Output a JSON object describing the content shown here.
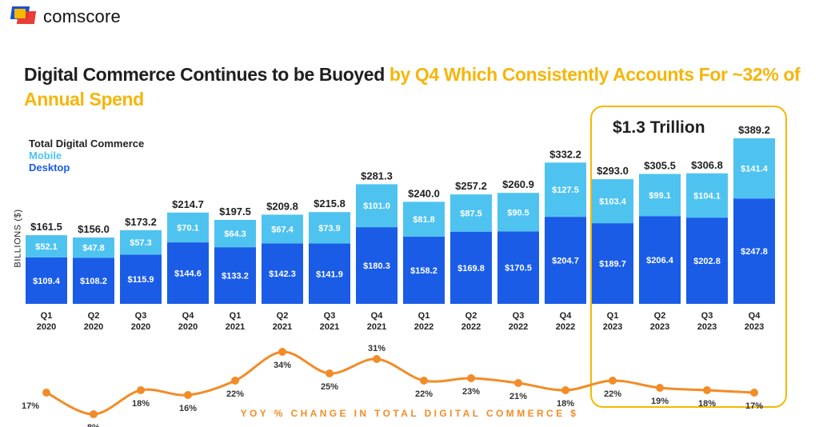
{
  "logo": {
    "text": "comscore"
  },
  "headline": {
    "part1": "Digital Commerce Continues to be Buoyed ",
    "part2": "by Q4 Which Consistently Accounts For ~32% of Annual Spend"
  },
  "legend": {
    "total": "Total Digital Commerce",
    "mobile": "Mobile",
    "desktop": "Desktop"
  },
  "highlight_label": "$1.3 Trillion",
  "caption": "YOY % CHANGE IN TOTAL DIGITAL COMMERCE $",
  "colors": {
    "desktop": "#1a5ce6",
    "mobile": "#4fc3f0",
    "line": "#f28c28",
    "highlight": "#f5b800"
  },
  "chart_data": [
    {
      "type": "bar",
      "stacked": true,
      "ylabel": "BILLIONS ($)",
      "categories": [
        "Q1 2020",
        "Q2 2020",
        "Q3 2020",
        "Q4 2020",
        "Q1 2021",
        "Q2 2021",
        "Q3 2021",
        "Q4 2021",
        "Q1 2022",
        "Q2 2022",
        "Q3 2022",
        "Q4 2022",
        "Q1 2023",
        "Q2 2023",
        "Q3 2023",
        "Q4 2023"
      ],
      "category_lines": [
        [
          "Q1",
          "2020"
        ],
        [
          "Q2",
          "2020"
        ],
        [
          "Q3",
          "2020"
        ],
        [
          "Q4",
          "2020"
        ],
        [
          "Q1",
          "2021"
        ],
        [
          "Q2",
          "2021"
        ],
        [
          "Q3",
          "2021"
        ],
        [
          "Q4",
          "2021"
        ],
        [
          "Q1",
          "2022"
        ],
        [
          "Q2",
          "2022"
        ],
        [
          "Q3",
          "2022"
        ],
        [
          "Q4",
          "2022"
        ],
        [
          "Q1",
          "2023"
        ],
        [
          "Q2",
          "2023"
        ],
        [
          "Q3",
          "2023"
        ],
        [
          "Q4",
          "2023"
        ]
      ],
      "series": [
        {
          "name": "Desktop",
          "values": [
            109.4,
            108.2,
            115.9,
            144.6,
            133.2,
            142.3,
            141.9,
            180.3,
            158.2,
            169.8,
            170.5,
            204.7,
            189.7,
            206.4,
            202.8,
            247.8
          ],
          "labels": [
            "$109.4",
            "$108.2",
            "$115.9",
            "$144.6",
            "$133.2",
            "$142.3",
            "$141.9",
            "$180.3",
            "$158.2",
            "$169.8",
            "$170.5",
            "$204.7",
            "$189.7",
            "$206.4",
            "$202.8",
            "$247.8"
          ]
        },
        {
          "name": "Mobile",
          "values": [
            52.1,
            47.8,
            57.3,
            70.1,
            64.3,
            67.4,
            73.9,
            101.0,
            81.8,
            87.5,
            90.5,
            127.5,
            103.4,
            99.1,
            104.1,
            141.4
          ],
          "labels": [
            "$52.1",
            "$47.8",
            "$57.3",
            "$70.1",
            "$64.3",
            "$67.4",
            "$73.9",
            "$101.0",
            "$81.8",
            "$87.5",
            "$90.5",
            "$127.5",
            "$103.4",
            "$99.1",
            "$104.1",
            "$141.4"
          ]
        }
      ],
      "totals": [
        161.5,
        156.0,
        173.2,
        214.7,
        197.5,
        209.8,
        215.8,
        281.3,
        240.0,
        257.2,
        260.9,
        332.2,
        293.0,
        305.5,
        306.8,
        389.2
      ],
      "total_labels": [
        "$161.5",
        "$156.0",
        "$173.2",
        "$214.7",
        "$197.5",
        "$209.8",
        "$215.8",
        "$281.3",
        "$240.0",
        "$257.2",
        "$260.9",
        "$332.2",
        "$293.0",
        "$305.5",
        "$306.8",
        "$389.2"
      ],
      "ylim": [
        0,
        389.2
      ],
      "grid": false
    },
    {
      "type": "line",
      "values": [
        17,
        8,
        18,
        16,
        22,
        34,
        25,
        31,
        22,
        23,
        21,
        18,
        22,
        19,
        18,
        17
      ],
      "labels": [
        "17%",
        "8%",
        "18%",
        "16%",
        "22%",
        "34%",
        "25%",
        "31%",
        "22%",
        "23%",
        "21%",
        "18%",
        "22%",
        "19%",
        "18%",
        "17%"
      ],
      "label_positions": [
        "below",
        "below",
        "below",
        "below",
        "below",
        "below",
        "below",
        "above",
        "below",
        "below",
        "below",
        "below",
        "below",
        "below",
        "below",
        "below"
      ],
      "grid": false
    }
  ]
}
